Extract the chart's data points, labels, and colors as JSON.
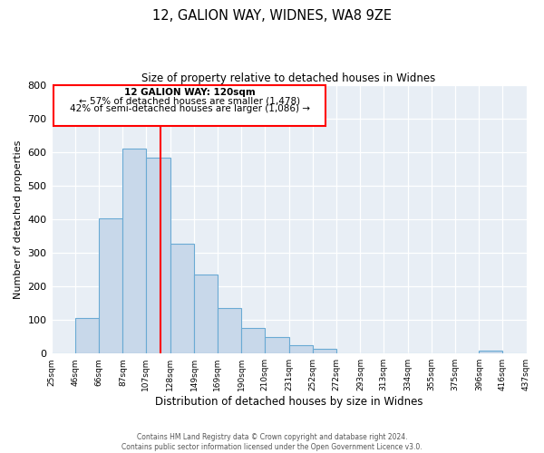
{
  "title": "12, GALION WAY, WIDNES, WA8 9ZE",
  "subtitle": "Size of property relative to detached houses in Widnes",
  "xlabel": "Distribution of detached houses by size in Widnes",
  "ylabel": "Number of detached properties",
  "bar_color": "#c8d8ea",
  "bar_edge_color": "#6aaad4",
  "background_color": "#e8eef5",
  "red_line_x": 120,
  "bin_edges": [
    25,
    46,
    66,
    87,
    107,
    128,
    149,
    169,
    190,
    210,
    231,
    252,
    272,
    293,
    313,
    334,
    355,
    375,
    396,
    416,
    437
  ],
  "bar_heights": [
    0,
    105,
    403,
    610,
    585,
    328,
    236,
    135,
    76,
    48,
    25,
    15,
    0,
    0,
    0,
    0,
    0,
    0,
    8,
    0
  ],
  "ylim": [
    0,
    800
  ],
  "yticks": [
    0,
    100,
    200,
    300,
    400,
    500,
    600,
    700,
    800
  ],
  "xtick_labels": [
    "25sqm",
    "46sqm",
    "66sqm",
    "87sqm",
    "107sqm",
    "128sqm",
    "149sqm",
    "169sqm",
    "190sqm",
    "210sqm",
    "231sqm",
    "252sqm",
    "272sqm",
    "293sqm",
    "313sqm",
    "334sqm",
    "355sqm",
    "375sqm",
    "396sqm",
    "416sqm",
    "437sqm"
  ],
  "annotation_title": "12 GALION WAY: 120sqm",
  "annotation_line1": "← 57% of detached houses are smaller (1,478)",
  "annotation_line2": "42% of semi-detached houses are larger (1,086) →",
  "footer1": "Contains HM Land Registry data © Crown copyright and database right 2024.",
  "footer2": "Contains public sector information licensed under the Open Government Licence v3.0."
}
